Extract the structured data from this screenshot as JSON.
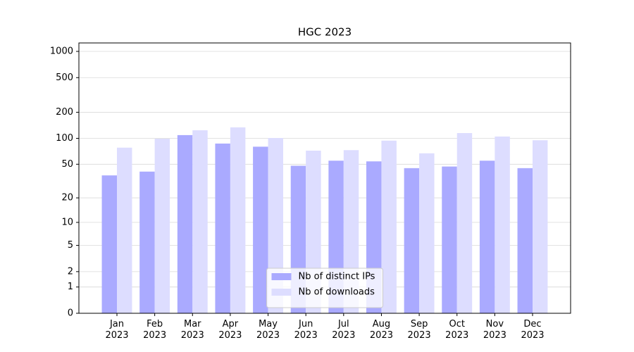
{
  "chart_data": {
    "type": "bar",
    "title": "HGC 2023",
    "categories": [
      "Jan\n2023",
      "Feb\n2023",
      "Mar\n2023",
      "Apr\n2023",
      "May\n2023",
      "Jun\n2023",
      "Jul\n2023",
      "Aug\n2023",
      "Sep\n2023",
      "Oct\n2023",
      "Nov\n2023",
      "Dec\n2023"
    ],
    "series": [
      {
        "name": "Nb of distinct IPs",
        "color": "#aaaaff",
        "values": [
          37,
          41,
          109,
          87,
          80,
          48,
          55,
          54,
          45,
          47,
          55,
          45
        ]
      },
      {
        "name": "Nb of downloads",
        "color": "#ddddff",
        "values": [
          78,
          99,
          124,
          134,
          101,
          72,
          73,
          94,
          67,
          115,
          105,
          95
        ]
      }
    ],
    "yscale": "log1p",
    "ylim": [
      0,
      1250
    ],
    "yticks": [
      0,
      1,
      2,
      5,
      10,
      20,
      50,
      100,
      200,
      500,
      1000
    ],
    "grid": true,
    "legend": "lower center"
  }
}
